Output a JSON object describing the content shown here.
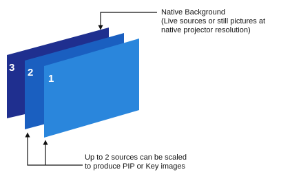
{
  "layers": [
    {
      "label": "3"
    },
    {
      "label": "2"
    },
    {
      "label": "1"
    }
  ],
  "annotations": {
    "top": [
      "Native Background",
      "(Live sources or still pictures at",
      "native projector resolution)"
    ],
    "bottom": [
      "Up to 2 sources can be scaled",
      "to produce PIP or Key images"
    ]
  }
}
